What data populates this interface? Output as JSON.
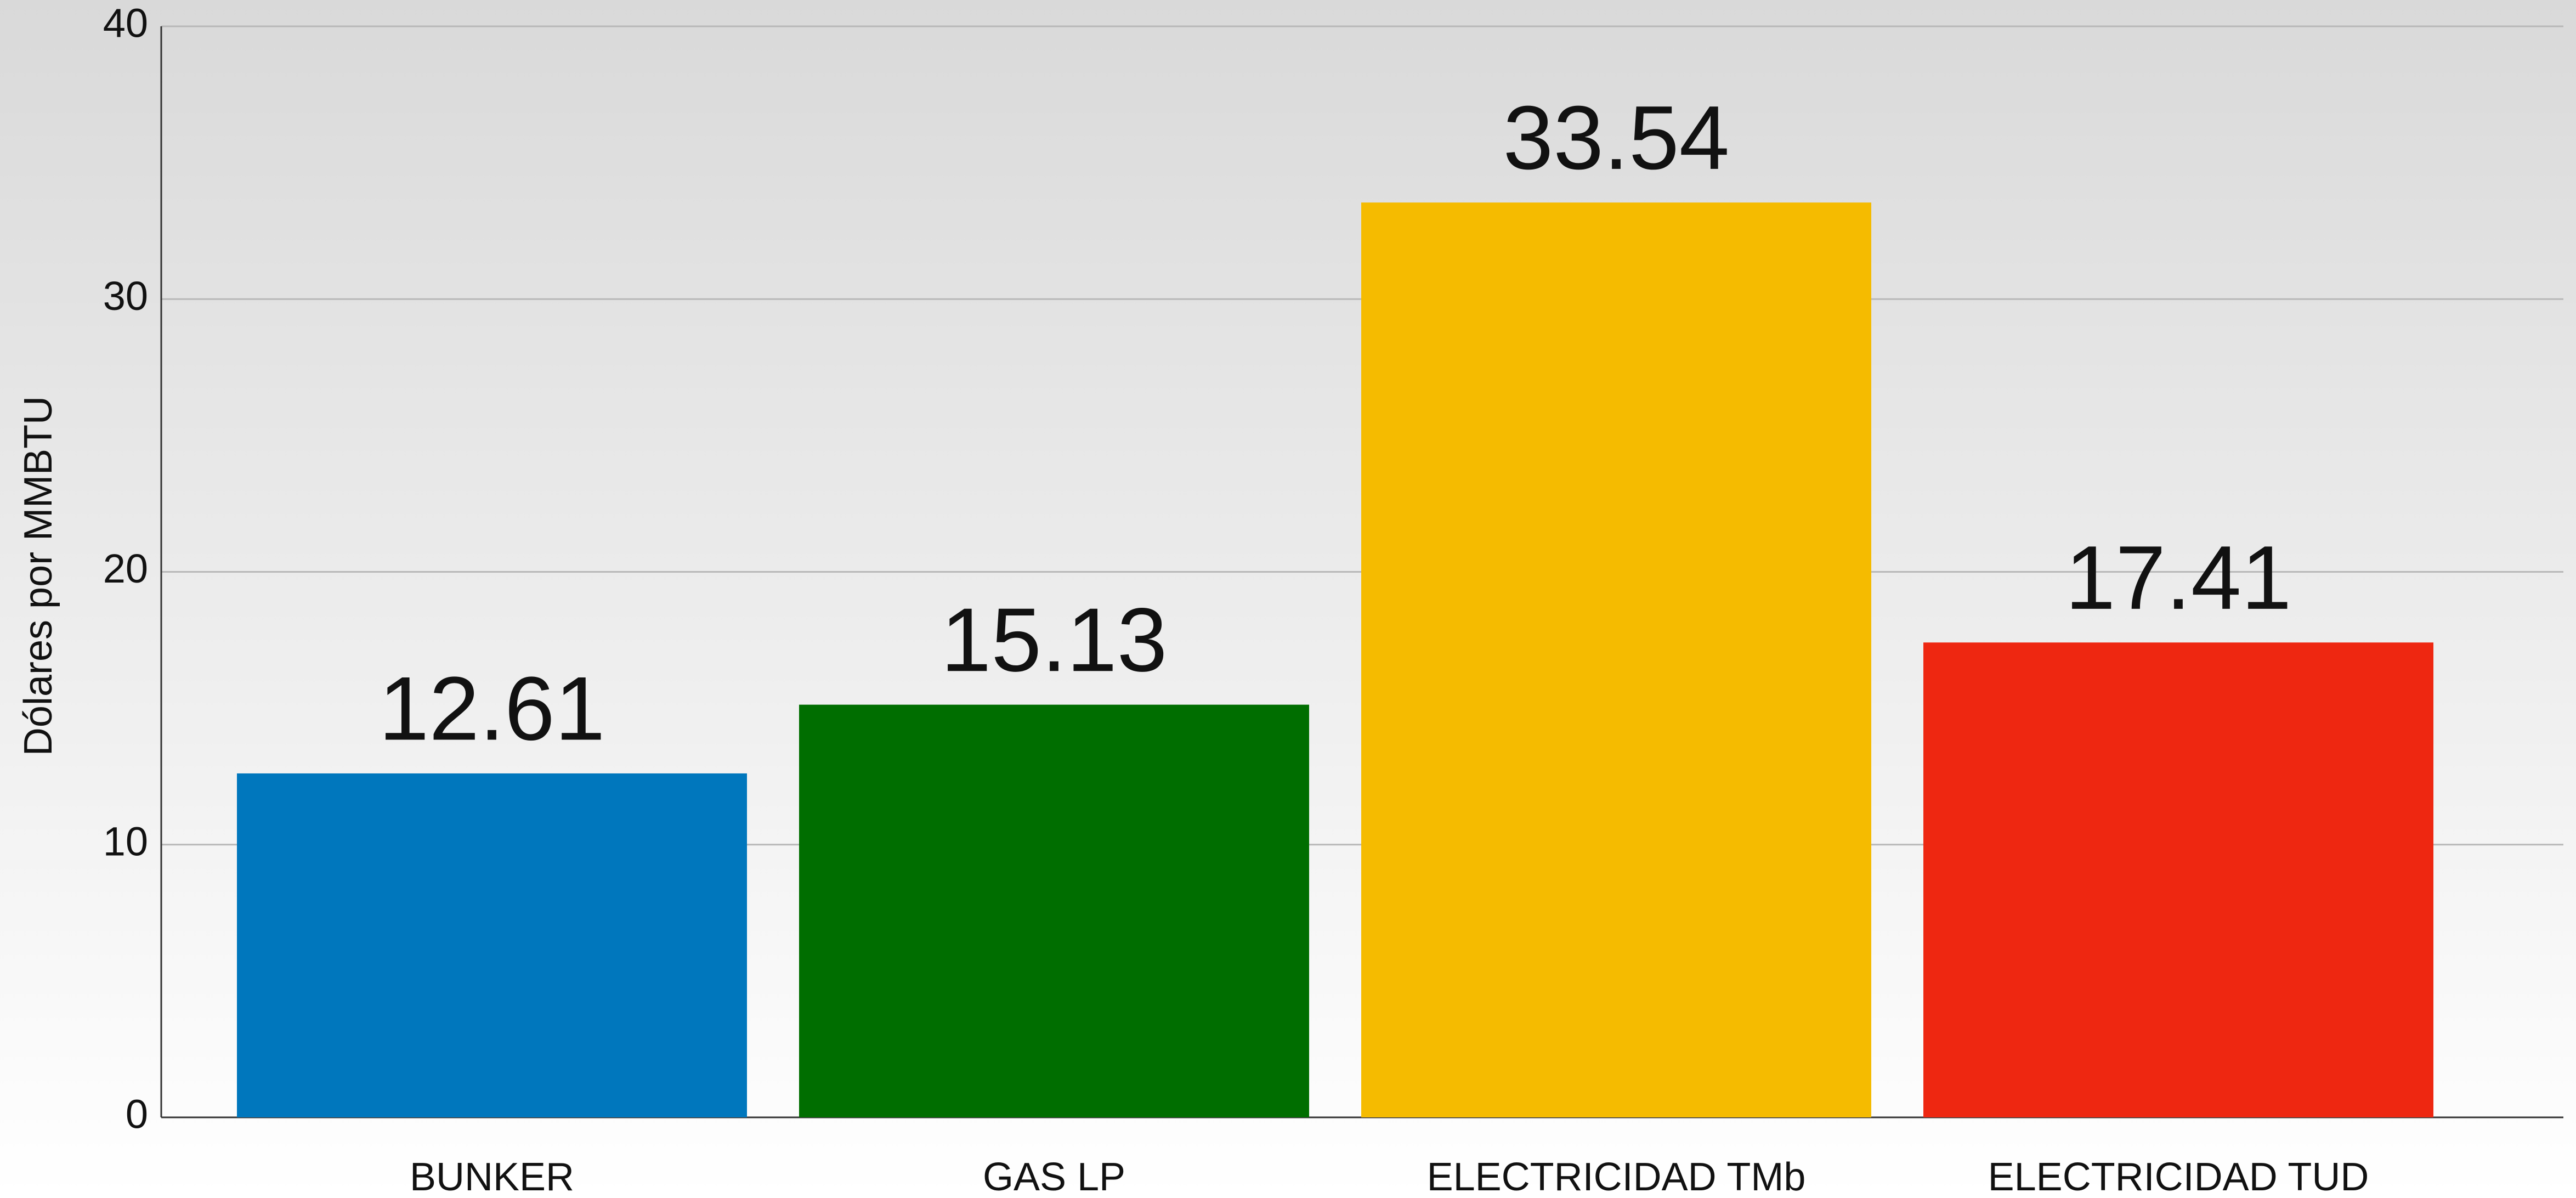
{
  "chart_data": {
    "type": "bar",
    "y_label": "Dólares por MMBTU",
    "categories": [
      "BUNKER",
      "GAS LP",
      "ELECTRICIDAD TMb",
      "ELECTRICIDAD TUD"
    ],
    "values": [
      12.61,
      15.13,
      33.54,
      17.41
    ],
    "colors": [
      "#0077bd",
      "#006e00",
      "#f5bb00",
      "#ee2711"
    ],
    "ylim": [
      0,
      40
    ],
    "yticks": [
      0,
      10,
      20,
      30,
      40
    ],
    "grid": true
  }
}
